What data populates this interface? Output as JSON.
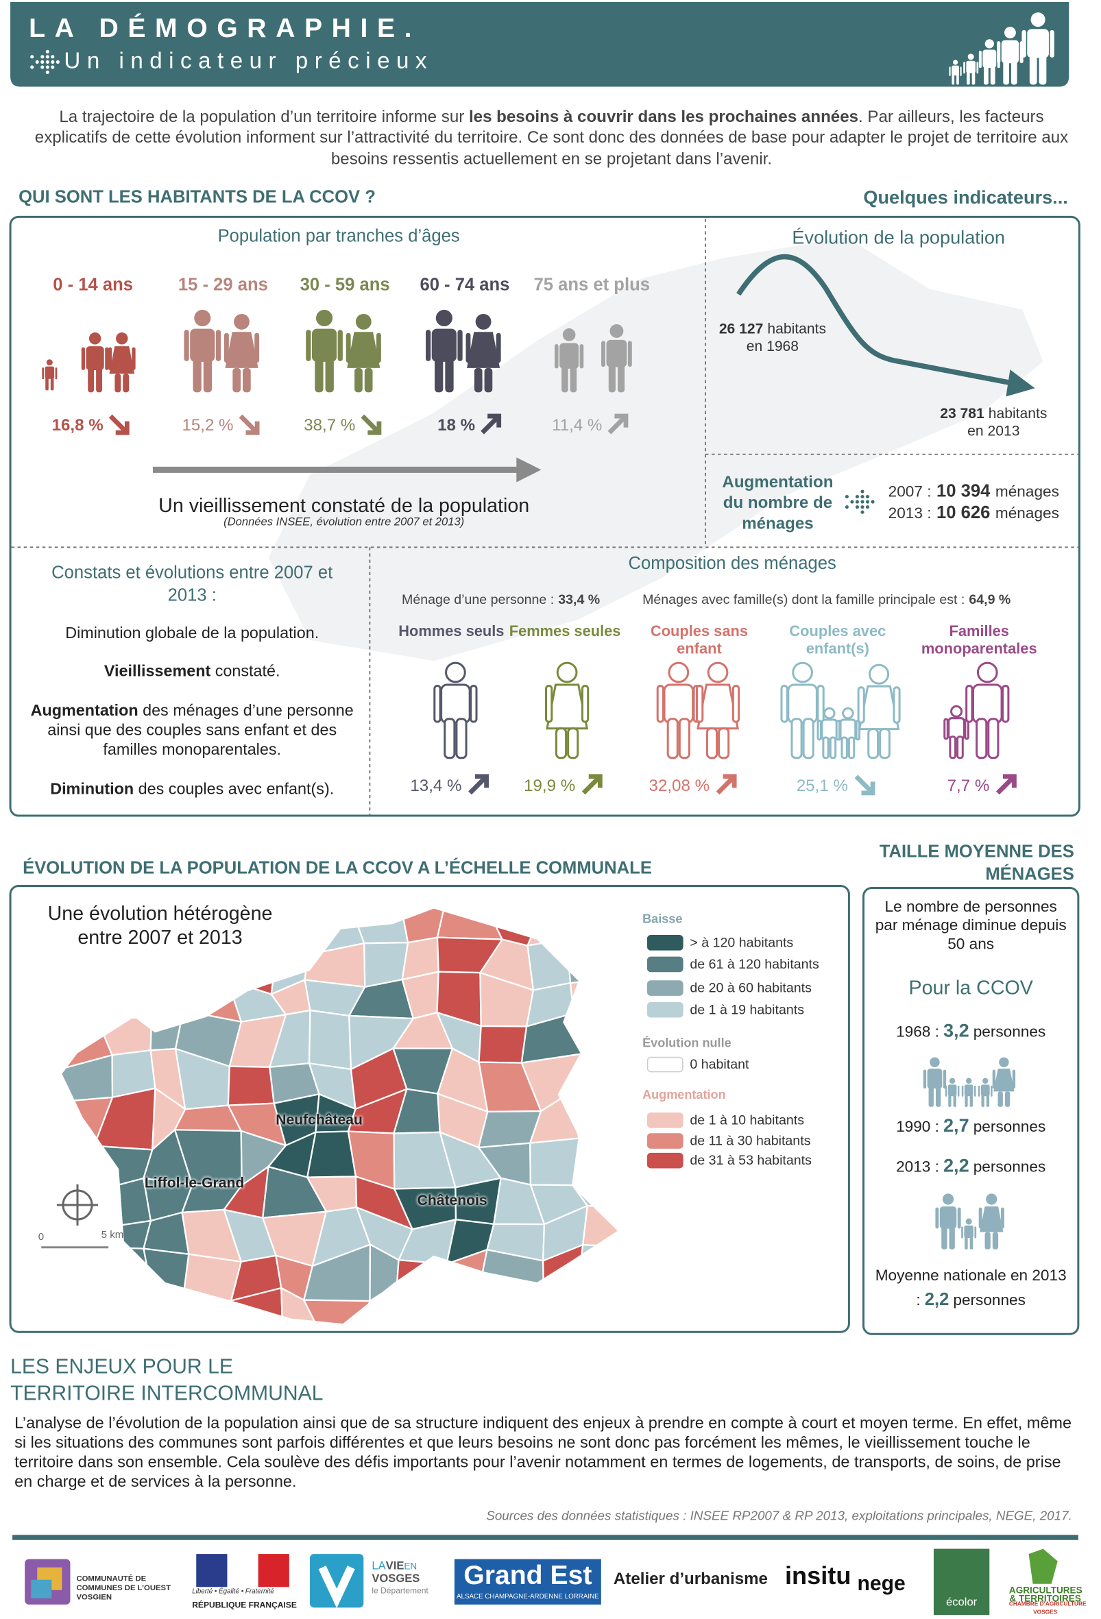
{
  "header": {
    "title": "LA DÉMOGRAPHIE.",
    "subtitle": "Un indicateur précieux"
  },
  "intro": [
    {
      "t": "La trajectoire de la population d’un territoire informe sur "
    },
    {
      "t": "les besoins à couvrir dans les prochaines années",
      "b": true
    },
    {
      "t": ". Par ailleurs, les facteurs explicatifs de cette évolution informent sur l’attractivité du territoire. Ce sont donc des données de base pour adapter le projet de territoire aux besoins ressentis actuellement en se projetant dans l’avenir."
    }
  ],
  "section1": {
    "title": "QUI SONT LES HABITANTS DE LA CCOV ?",
    "aside": "Quelques indicateurs..."
  },
  "ages": {
    "title": "Population par tranches d’âges",
    "groups": [
      {
        "label": "0 - 14 ans",
        "share": "16,8 %",
        "trend": "down",
        "color": "#b5524a"
      },
      {
        "label": "15 - 29 ans",
        "share": "15,2 %",
        "trend": "down",
        "color": "#b8847c"
      },
      {
        "label": "30 - 59 ans",
        "share": "38,7 %",
        "trend": "down",
        "color": "#7b8750"
      },
      {
        "label": "60 - 74 ans",
        "share": "18 %",
        "trend": "up",
        "color": "#4d4c5c"
      },
      {
        "label": "75 ans et plus",
        "share": "11,4 %",
        "trend": "up",
        "color": "#a3a3a3"
      }
    ],
    "note": "Un vieillissement constaté de la population",
    "source": "(Données INSEE, évolution entre 2007 et 2013)"
  },
  "evolution": {
    "title": "Évolution de la population",
    "start": {
      "value": "26 127",
      "unit": "habitants",
      "year": "en 1968"
    },
    "end": {
      "value": "23 781",
      "unit": "habitants",
      "year": "en 2013"
    }
  },
  "households_count": {
    "label": "Augmentation du nombre de ménages",
    "rows": [
      {
        "year": "2007 :",
        "value": "10 394",
        "unit": "ménages"
      },
      {
        "year": "2013 :",
        "value": "10 626",
        "unit": "ménages"
      }
    ]
  },
  "findings": {
    "title": "Constats et évolutions entre 2007 et 2013 :",
    "items": [
      [
        {
          "t": "Diminution globale de la population."
        }
      ],
      [
        {
          "t": "Vieillissement",
          "b": true
        },
        {
          "t": " constaté."
        }
      ],
      [
        {
          "t": "Augmentation",
          "b": true
        },
        {
          "t": " des ménages d’une personne ainsi que des couples sans enfant et des familles monoparentales."
        }
      ],
      [
        {
          "t": "Diminution",
          "b": true
        },
        {
          "t": " des couples avec enfant(s)."
        }
      ]
    ]
  },
  "composition": {
    "title": "Composition des ménages",
    "single": {
      "label": "Ménage d’une personne :",
      "value": "33,4 %"
    },
    "family": {
      "label": "Ménages avec famille(s) dont la famille principale est :",
      "value": "64,9 %"
    },
    "types": [
      {
        "label": "Hommes seuls",
        "share": "13,4 %",
        "trend": "up",
        "color": "#55586a"
      },
      {
        "label": "Femmes seules",
        "share": "19,9 %",
        "trend": "up",
        "color": "#7a8a3c"
      },
      {
        "label": "Couples sans enfant",
        "share": "32,08 %",
        "trend": "up",
        "color": "#d4736b"
      },
      {
        "label": "Couples avec enfant(s)",
        "share": "25,1 %",
        "trend": "down",
        "color": "#8dbac6"
      },
      {
        "label": "Familles monoparentales",
        "share": "7,7 %",
        "trend": "up",
        "color": "#9a4a88"
      }
    ]
  },
  "section2": {
    "title": "ÉVOLUTION DE LA POPULATION DE LA CCOV A L’ÉCHELLE COMMUNALE",
    "map_title": "Une évolution hétérogène entre 2007 et 2013",
    "towns": [
      "Neufchâteau",
      "Liffol-le-Grand",
      "Châtenois"
    ],
    "scale": [
      "0",
      "5 km"
    ],
    "legend": [
      {
        "heading": "Baisse",
        "color": "#86a6ae",
        "items": [
          {
            "label": "> à 120 habitants",
            "color": "#2f5b5e"
          },
          {
            "label": "de 61 à 120 habitants",
            "color": "#567e83"
          },
          {
            "label": "de 20 à 60 habitants",
            "color": "#8eaab1"
          },
          {
            "label": "de 1 à 19 habitants",
            "color": "#b9d0d6"
          }
        ]
      },
      {
        "heading": "Évolution nulle",
        "color": "#9a9a9a",
        "items": [
          {
            "label": "0 habitant",
            "color": "#ffffff"
          }
        ]
      },
      {
        "heading": "Augmentation",
        "color": "#e2a49b",
        "items": [
          {
            "label": "de 1 à 10 habitants",
            "color": "#f2c6bd"
          },
          {
            "label": "de 11 à 30 habitants",
            "color": "#e08a80"
          },
          {
            "label": "de 31 à 53 habitants",
            "color": "#c9504d"
          }
        ]
      }
    ]
  },
  "size": {
    "title": "TAILLE MOYENNE DES MÉNAGES",
    "subtitle": "Le nombre de personnes par ménage diminue depuis 50 ans",
    "scope": "Pour la CCOV",
    "rows": [
      {
        "year": "1968 :",
        "value": "3,2",
        "unit": "personnes"
      },
      {
        "year": "1990 :",
        "value": "2,7",
        "unit": "personnes"
      },
      {
        "year": "2013 :",
        "value": "2,2",
        "unit": "personnes"
      }
    ],
    "national": {
      "label": "Moyenne nationale en 2013 :",
      "value": "2,2",
      "unit": "personnes"
    }
  },
  "stakes": {
    "title": "LES ENJEUX POUR LE TERRITOIRE INTERCOMMUNAL",
    "text": "L’analyse de l’évolution de la population ainsi que de sa structure indiquent des enjeux à prendre en compte à court et moyen terme. En effet,  même si les situations des communes sont parfois différentes et que leurs besoins ne sont donc pas forcément les mêmes, le vieillissement touche le territoire dans son ensemble. Cela soulève des défis importants pour l’avenir notamment en termes de logements, de transports, de soins, de prise en charge et de services à la personne."
  },
  "sources": "Sources des données statistiques : INSEE RP2007 & RP 2013, exploitations principales, NEGE, 2017.",
  "partners": {
    "ccov": "COMMUNAUTÉ DE COMMUNES DE L’OUEST VOSGIEN",
    "rf_motto": "Liberté • Égalité • Fraternité",
    "rf": "RÉPUBLIQUE FRANÇAISE",
    "vosges": [
      "LA",
      "VIE",
      "EN",
      "VOSGES",
      "le Département"
    ],
    "grandest": "Grand Est",
    "grandest_sub": "ALSACE CHAMPAGNE-ARDENNE LORRAINE",
    "atelier": "Atelier d’urbanisme",
    "insitu": "insitu",
    "nege": "nege",
    "ecolor": "écolor",
    "chambre": [
      "AGRICULTURES",
      "& TERRITOIRES",
      "CHAMBRE D’AGRICULTURE",
      "VOSGES"
    ]
  }
}
